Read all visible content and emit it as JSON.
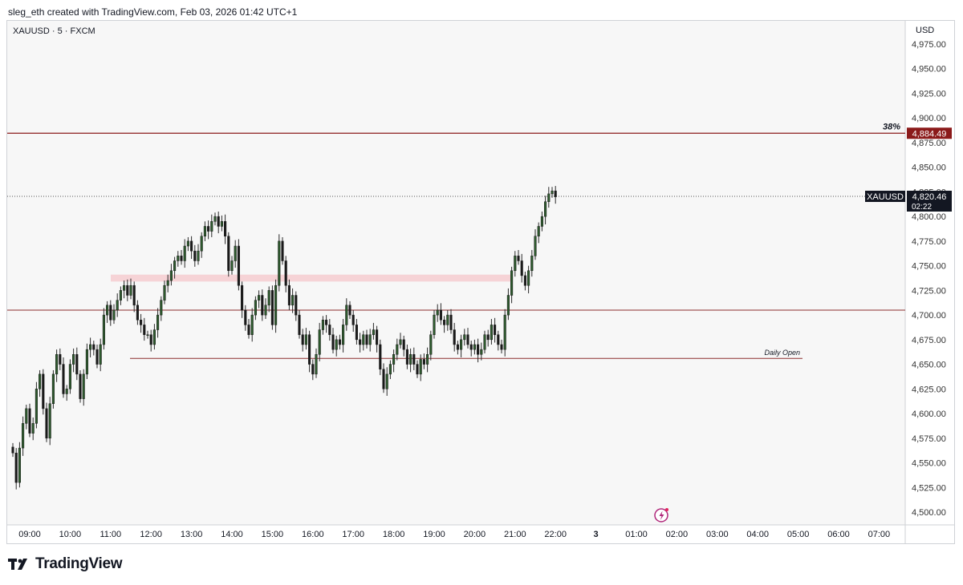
{
  "header": {
    "credit": "sleg_eth created with TradingView.com, Feb 03, 2026 01:42 UTC+1"
  },
  "chart_data": {
    "type": "candlestick",
    "symbol_label": "XAUUSD · 5 · FXCM",
    "currency": "USD",
    "ylim": [
      4490,
      4990
    ],
    "y_ticks": [
      "4,975.00",
      "4,950.00",
      "4,925.00",
      "4,900.00",
      "4,875.00",
      "4,850.00",
      "4,825.00",
      "4,800.00",
      "4,775.00",
      "4,750.00",
      "4,725.00",
      "4,700.00",
      "4,675.00",
      "4,650.00",
      "4,625.00",
      "4,600.00",
      "4,575.00",
      "4,550.00",
      "4,525.00",
      "4,500.00"
    ],
    "x_ticks": [
      "09:00",
      "10:00",
      "11:00",
      "12:00",
      "13:00",
      "14:00",
      "15:00",
      "16:00",
      "17:00",
      "18:00",
      "19:00",
      "20:00",
      "21:00",
      "22:00",
      "3",
      "01:00",
      "02:00",
      "03:00",
      "04:00",
      "05:00",
      "06:00",
      "07:00"
    ],
    "current_price": {
      "symbol": "XAUUSD",
      "value": 4820.46,
      "label": "4,820.46",
      "countdown": "02:22"
    },
    "levels": [
      {
        "name": "fib-38",
        "price": 4884.49,
        "label": "4,884.49",
        "annotation": "38%",
        "color": "#8b1a1a"
      },
      {
        "name": "level-4705",
        "price": 4705,
        "color": "#8b2e2e"
      },
      {
        "name": "daily-open",
        "price": 4656,
        "annotation": "Daily Open",
        "color": "#8b2e2e"
      }
    ],
    "zone": {
      "price_low": 4734,
      "price_high": 4741,
      "color": "#f6d3d6"
    },
    "colors": {
      "up": "#2e5b2e",
      "down": "#1a1a1a",
      "wick": "#2a2a2a",
      "background": "#f7f7f7"
    },
    "candles": {
      "interval_minutes": 5,
      "start": "08:35",
      "closes": [
        4560,
        4530,
        4565,
        4590,
        4605,
        4580,
        4590,
        4625,
        4640,
        4605,
        4575,
        4610,
        4640,
        4660,
        4650,
        4620,
        4625,
        4650,
        4660,
        4640,
        4615,
        4640,
        4665,
        4670,
        4665,
        4650,
        4670,
        4700,
        4710,
        4695,
        4705,
        4715,
        4725,
        4730,
        4720,
        4730,
        4710,
        4695,
        4690,
        4680,
        4680,
        4670,
        4685,
        4700,
        4715,
        4730,
        4735,
        4745,
        4755,
        4760,
        4755,
        4770,
        4775,
        4765,
        4755,
        4765,
        4780,
        4790,
        4785,
        4795,
        4800,
        4790,
        4795,
        4780,
        4745,
        4755,
        4770,
        4730,
        4705,
        4690,
        4680,
        4700,
        4715,
        4720,
        4700,
        4710,
        4725,
        4690,
        4730,
        4775,
        4755,
        4730,
        4710,
        4720,
        4700,
        4680,
        4670,
        4680,
        4650,
        4640,
        4660,
        4685,
        4695,
        4690,
        4680,
        4665,
        4675,
        4670,
        4690,
        4710,
        4700,
        4690,
        4675,
        4670,
        4680,
        4670,
        4680,
        4685,
        4670,
        4645,
        4625,
        4640,
        4650,
        4660,
        4670,
        4675,
        4665,
        4650,
        4660,
        4650,
        4640,
        4655,
        4650,
        4660,
        4680,
        4700,
        4705,
        4695,
        4690,
        4700,
        4685,
        4670,
        4665,
        4675,
        4680,
        4670,
        4665,
        4670,
        4660,
        4665,
        4680,
        4675,
        4690,
        4680,
        4670,
        4665,
        4700,
        4720,
        4745,
        4760,
        4755,
        4740,
        4730,
        4745,
        4760,
        4780,
        4790,
        4800,
        4815,
        4823,
        4826,
        4820
      ]
    }
  }
}
